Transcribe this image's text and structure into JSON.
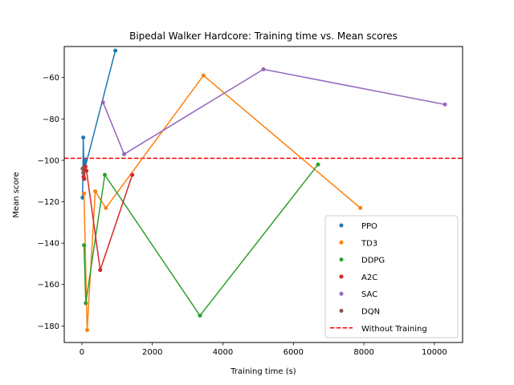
{
  "chart_data": {
    "type": "scatter",
    "title": "Bipedal Walker Hardcore: Training time vs. Mean scores",
    "xlabel": "Training time (s)",
    "ylabel": "Mean score",
    "xlim": [
      -500,
      10800
    ],
    "ylim": [
      -188,
      -45
    ],
    "xticks": [
      0,
      2000,
      4000,
      6000,
      8000,
      10000
    ],
    "yticks": [
      -180,
      -160,
      -140,
      -120,
      -100,
      -80,
      -60
    ],
    "legend_position": "lower right",
    "series": [
      {
        "name": "PPO",
        "color": "#1f77b4",
        "x": [
          20,
          40,
          60,
          80,
          100,
          950
        ],
        "y": [
          -118,
          -89,
          -109,
          -100,
          -103,
          -47
        ]
      },
      {
        "name": "TD3",
        "color": "#ff7f0e",
        "x": [
          60,
          150,
          380,
          680,
          3450,
          7900
        ],
        "y": [
          -116,
          -182,
          -115,
          -123,
          -59,
          -123
        ]
      },
      {
        "name": "DDPG",
        "color": "#2ca02c",
        "x": [
          60,
          110,
          650,
          3350,
          6700
        ],
        "y": [
          -141,
          -169,
          -107,
          -175,
          -102
        ]
      },
      {
        "name": "A2C",
        "color": "#d62728",
        "x": [
          30,
          50,
          70,
          100,
          130,
          520,
          1430
        ],
        "y": [
          -104,
          -108,
          -109,
          -103,
          -105,
          -153,
          -107
        ]
      },
      {
        "name": "SAC",
        "color": "#9467bd",
        "x": [
          600,
          1200,
          5150,
          10300
        ],
        "y": [
          -72,
          -97,
          -56,
          -73
        ]
      },
      {
        "name": "DQN",
        "color": "#8c564b",
        "x": [
          20,
          40
        ],
        "y": [
          -104,
          -106
        ]
      }
    ],
    "hline": {
      "name": "Without Training",
      "y": -99,
      "color": "#ff0000",
      "style": "dashed"
    },
    "grid": false
  }
}
